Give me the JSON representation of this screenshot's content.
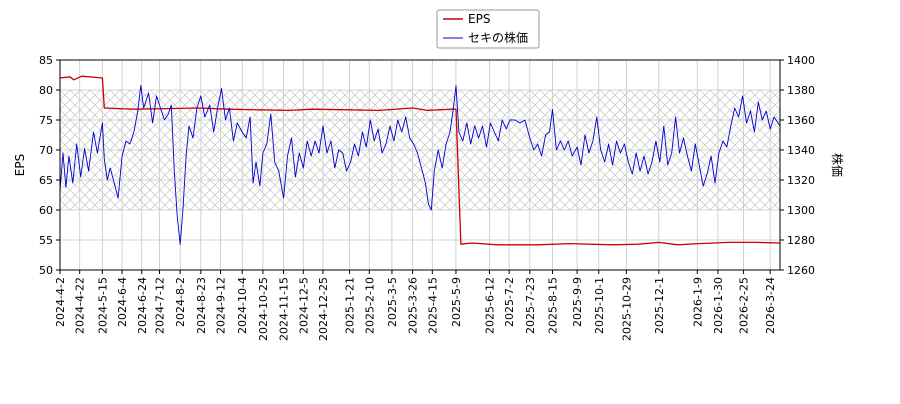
{
  "chart_data": {
    "type": "line",
    "xlabel": "",
    "y_left": {
      "label": "EPS",
      "range": [
        50,
        85
      ],
      "ticks": [
        50,
        55,
        60,
        65,
        70,
        75,
        80,
        85
      ]
    },
    "y_right": {
      "label": "株価",
      "range": [
        1260,
        1400
      ],
      "ticks": [
        1260,
        1280,
        1300,
        1320,
        1340,
        1360,
        1380,
        1400
      ]
    },
    "x_range": [
      "2024-04-02",
      "2026-04-03"
    ],
    "x_ticks": [
      "2024-4-2",
      "2024-4-22",
      "2024-5-15",
      "2024-6-4",
      "2024-6-24",
      "2024-7-12",
      "2024-8-2",
      "2024-8-23",
      "2024-9-12",
      "2024-10-4",
      "2024-10-25",
      "2024-11-15",
      "2024-12-5",
      "2024-12-25",
      "2025-1-21",
      "2025-2-10",
      "2025-3-5",
      "2025-3-26",
      "2025-4-15",
      "2025-5-9",
      "2025-6-12",
      "2025-7-2",
      "2025-7-23",
      "2025-8-15",
      "2025-9-9",
      "2025-10-1",
      "2025-10-29",
      "2025-12-1",
      "2026-1-9",
      "2026-1-30",
      "2026-2-25",
      "2026-3-24"
    ],
    "grid": true,
    "legend": {
      "placement": "top-center",
      "entries": [
        "EPS",
        "セキの株価"
      ]
    },
    "price_band": [
      1300,
      1380
    ],
    "series": [
      {
        "name": "EPS",
        "axis": "left",
        "color": "#cc0000",
        "points": [
          [
            "2024-04-02",
            82.0
          ],
          [
            "2024-04-12",
            82.2
          ],
          [
            "2024-04-16",
            81.7
          ],
          [
            "2024-04-24",
            82.3
          ],
          [
            "2024-05-08",
            82.1
          ],
          [
            "2024-05-15",
            82.0
          ],
          [
            "2024-05-17",
            77.0
          ],
          [
            "2024-06-15",
            76.8
          ],
          [
            "2024-07-20",
            76.9
          ],
          [
            "2024-08-20",
            77.0
          ],
          [
            "2024-09-20",
            76.8
          ],
          [
            "2024-10-20",
            76.7
          ],
          [
            "2024-11-20",
            76.6
          ],
          [
            "2024-12-15",
            76.8
          ],
          [
            "2025-01-20",
            76.7
          ],
          [
            "2025-02-20",
            76.6
          ],
          [
            "2025-03-26",
            77.0
          ],
          [
            "2025-04-10",
            76.6
          ],
          [
            "2025-05-05",
            76.8
          ],
          [
            "2025-05-09",
            76.8
          ],
          [
            "2025-05-14",
            54.3
          ],
          [
            "2025-05-25",
            54.5
          ],
          [
            "2025-06-20",
            54.2
          ],
          [
            "2025-08-01",
            54.2
          ],
          [
            "2025-09-01",
            54.4
          ],
          [
            "2025-10-15",
            54.2
          ],
          [
            "2025-11-10",
            54.3
          ],
          [
            "2025-12-01",
            54.6
          ],
          [
            "2025-12-20",
            54.2
          ],
          [
            "2026-01-10",
            54.4
          ],
          [
            "2026-02-10",
            54.6
          ],
          [
            "2026-03-10",
            54.6
          ],
          [
            "2026-04-03",
            54.5
          ]
        ]
      },
      {
        "name": "セキの株価",
        "axis": "right",
        "color": "#0000cc",
        "points": [
          [
            "2024-04-02",
            1313
          ],
          [
            "2024-04-05",
            1338
          ],
          [
            "2024-04-08",
            1315
          ],
          [
            "2024-04-11",
            1336
          ],
          [
            "2024-04-15",
            1318
          ],
          [
            "2024-04-19",
            1344
          ],
          [
            "2024-04-23",
            1322
          ],
          [
            "2024-04-27",
            1341
          ],
          [
            "2024-05-01",
            1326
          ],
          [
            "2024-05-06",
            1352
          ],
          [
            "2024-05-10",
            1338
          ],
          [
            "2024-05-15",
            1358
          ],
          [
            "2024-05-17",
            1334
          ],
          [
            "2024-05-20",
            1320
          ],
          [
            "2024-05-23",
            1328
          ],
          [
            "2024-05-27",
            1318
          ],
          [
            "2024-05-31",
            1308
          ],
          [
            "2024-06-04",
            1336
          ],
          [
            "2024-06-08",
            1346
          ],
          [
            "2024-06-12",
            1344
          ],
          [
            "2024-06-16",
            1352
          ],
          [
            "2024-06-20",
            1366
          ],
          [
            "2024-06-23",
            1383
          ],
          [
            "2024-06-26",
            1368
          ],
          [
            "2024-07-01",
            1378
          ],
          [
            "2024-07-05",
            1358
          ],
          [
            "2024-07-09",
            1376
          ],
          [
            "2024-07-13",
            1368
          ],
          [
            "2024-07-17",
            1360
          ],
          [
            "2024-07-21",
            1364
          ],
          [
            "2024-07-24",
            1370
          ],
          [
            "2024-07-27",
            1326
          ],
          [
            "2024-07-30",
            1296
          ],
          [
            "2024-08-02",
            1277
          ],
          [
            "2024-08-05",
            1302
          ],
          [
            "2024-08-08",
            1336
          ],
          [
            "2024-08-11",
            1356
          ],
          [
            "2024-08-15",
            1348
          ],
          [
            "2024-08-19",
            1368
          ],
          [
            "2024-08-23",
            1376
          ],
          [
            "2024-08-27",
            1362
          ],
          [
            "2024-09-01",
            1370
          ],
          [
            "2024-09-05",
            1352
          ],
          [
            "2024-09-09",
            1368
          ],
          [
            "2024-09-13",
            1381
          ],
          [
            "2024-09-17",
            1360
          ],
          [
            "2024-09-21",
            1368
          ],
          [
            "2024-09-25",
            1346
          ],
          [
            "2024-09-29",
            1358
          ],
          [
            "2024-10-04",
            1352
          ],
          [
            "2024-10-08",
            1348
          ],
          [
            "2024-10-12",
            1362
          ],
          [
            "2024-10-15",
            1318
          ],
          [
            "2024-10-18",
            1332
          ],
          [
            "2024-10-22",
            1316
          ],
          [
            "2024-10-25",
            1338
          ],
          [
            "2024-10-29",
            1344
          ],
          [
            "2024-11-02",
            1364
          ],
          [
            "2024-11-06",
            1332
          ],
          [
            "2024-11-10",
            1326
          ],
          [
            "2024-11-15",
            1308
          ],
          [
            "2024-11-19",
            1336
          ],
          [
            "2024-11-23",
            1348
          ],
          [
            "2024-11-27",
            1322
          ],
          [
            "2024-12-01",
            1338
          ],
          [
            "2024-12-05",
            1328
          ],
          [
            "2024-12-09",
            1346
          ],
          [
            "2024-12-13",
            1336
          ],
          [
            "2024-12-17",
            1346
          ],
          [
            "2024-12-21",
            1338
          ],
          [
            "2024-12-25",
            1356
          ],
          [
            "2024-12-29",
            1338
          ],
          [
            "2025-01-02",
            1346
          ],
          [
            "2025-01-06",
            1328
          ],
          [
            "2025-01-10",
            1340
          ],
          [
            "2025-01-14",
            1338
          ],
          [
            "2025-01-18",
            1326
          ],
          [
            "2025-01-22",
            1332
          ],
          [
            "2025-01-26",
            1344
          ],
          [
            "2025-01-30",
            1336
          ],
          [
            "2025-02-03",
            1352
          ],
          [
            "2025-02-07",
            1342
          ],
          [
            "2025-02-11",
            1360
          ],
          [
            "2025-02-15",
            1346
          ],
          [
            "2025-02-19",
            1354
          ],
          [
            "2025-02-23",
            1338
          ],
          [
            "2025-02-27",
            1344
          ],
          [
            "2025-03-03",
            1356
          ],
          [
            "2025-03-07",
            1346
          ],
          [
            "2025-03-11",
            1360
          ],
          [
            "2025-03-15",
            1352
          ],
          [
            "2025-03-19",
            1362
          ],
          [
            "2025-03-23",
            1348
          ],
          [
            "2025-03-27",
            1344
          ],
          [
            "2025-03-31",
            1338
          ],
          [
            "2025-04-04",
            1328
          ],
          [
            "2025-04-08",
            1318
          ],
          [
            "2025-04-11",
            1304
          ],
          [
            "2025-04-14",
            1300
          ],
          [
            "2025-04-17",
            1326
          ],
          [
            "2025-04-21",
            1340
          ],
          [
            "2025-04-25",
            1328
          ],
          [
            "2025-04-29",
            1344
          ],
          [
            "2025-05-03",
            1352
          ],
          [
            "2025-05-06",
            1366
          ],
          [
            "2025-05-09",
            1383
          ],
          [
            "2025-05-12",
            1352
          ],
          [
            "2025-05-16",
            1346
          ],
          [
            "2025-05-20",
            1358
          ],
          [
            "2025-05-24",
            1344
          ],
          [
            "2025-05-28",
            1356
          ],
          [
            "2025-06-01",
            1348
          ],
          [
            "2025-06-05",
            1356
          ],
          [
            "2025-06-09",
            1342
          ],
          [
            "2025-06-13",
            1358
          ],
          [
            "2025-06-17",
            1352
          ],
          [
            "2025-06-21",
            1346
          ],
          [
            "2025-06-25",
            1360
          ],
          [
            "2025-06-29",
            1354
          ],
          [
            "2025-07-03",
            1360
          ],
          [
            "2025-07-08",
            1360
          ],
          [
            "2025-07-13",
            1358
          ],
          [
            "2025-07-18",
            1360
          ],
          [
            "2025-07-23",
            1348
          ],
          [
            "2025-07-27",
            1340
          ],
          [
            "2025-07-31",
            1344
          ],
          [
            "2025-08-04",
            1336
          ],
          [
            "2025-08-08",
            1350
          ],
          [
            "2025-08-12",
            1352
          ],
          [
            "2025-08-15",
            1367
          ],
          [
            "2025-08-19",
            1340
          ],
          [
            "2025-08-23",
            1346
          ],
          [
            "2025-08-27",
            1340
          ],
          [
            "2025-08-31",
            1346
          ],
          [
            "2025-09-04",
            1336
          ],
          [
            "2025-09-09",
            1342
          ],
          [
            "2025-09-13",
            1330
          ],
          [
            "2025-09-17",
            1350
          ],
          [
            "2025-09-21",
            1338
          ],
          [
            "2025-09-25",
            1346
          ],
          [
            "2025-09-29",
            1362
          ],
          [
            "2025-10-03",
            1340
          ],
          [
            "2025-10-07",
            1332
          ],
          [
            "2025-10-11",
            1344
          ],
          [
            "2025-10-15",
            1330
          ],
          [
            "2025-10-19",
            1346
          ],
          [
            "2025-10-23",
            1338
          ],
          [
            "2025-10-27",
            1344
          ],
          [
            "2025-10-31",
            1332
          ],
          [
            "2025-11-04",
            1324
          ],
          [
            "2025-11-08",
            1338
          ],
          [
            "2025-11-12",
            1326
          ],
          [
            "2025-11-16",
            1336
          ],
          [
            "2025-11-20",
            1324
          ],
          [
            "2025-11-24",
            1332
          ],
          [
            "2025-11-28",
            1346
          ],
          [
            "2025-12-02",
            1332
          ],
          [
            "2025-12-06",
            1356
          ],
          [
            "2025-12-10",
            1330
          ],
          [
            "2025-12-14",
            1338
          ],
          [
            "2025-12-18",
            1362
          ],
          [
            "2025-12-22",
            1338
          ],
          [
            "2025-12-26",
            1348
          ],
          [
            "2025-12-30",
            1336
          ],
          [
            "2026-01-03",
            1326
          ],
          [
            "2026-01-07",
            1344
          ],
          [
            "2026-01-11",
            1330
          ],
          [
            "2026-01-15",
            1316
          ],
          [
            "2026-01-19",
            1324
          ],
          [
            "2026-01-23",
            1336
          ],
          [
            "2026-01-27",
            1318
          ],
          [
            "2026-01-31",
            1338
          ],
          [
            "2026-02-04",
            1346
          ],
          [
            "2026-02-08",
            1342
          ],
          [
            "2026-02-12",
            1356
          ],
          [
            "2026-02-16",
            1368
          ],
          [
            "2026-02-20",
            1362
          ],
          [
            "2026-02-24",
            1376
          ],
          [
            "2026-02-28",
            1358
          ],
          [
            "2026-03-04",
            1366
          ],
          [
            "2026-03-08",
            1352
          ],
          [
            "2026-03-12",
            1372
          ],
          [
            "2026-03-16",
            1360
          ],
          [
            "2026-03-20",
            1366
          ],
          [
            "2026-03-24",
            1354
          ],
          [
            "2026-03-28",
            1362
          ],
          [
            "2026-04-03",
            1356
          ]
        ]
      }
    ]
  }
}
